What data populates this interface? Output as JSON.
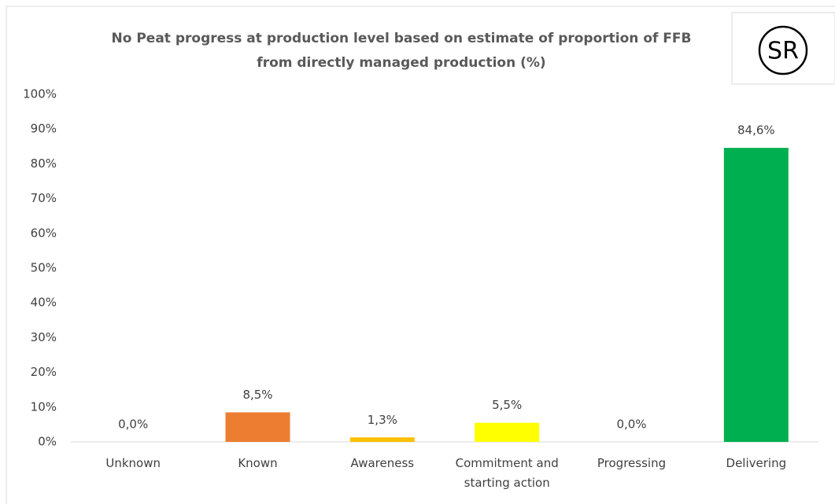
{
  "logo": "SR",
  "chart_data": {
    "type": "bar",
    "title": "No Peat progress at production level based on estimate of proportion of FFB from directly managed production (%)",
    "categories": [
      "Unknown",
      "Known",
      "Awareness",
      "Commitment and starting action",
      "Progressing",
      "Delivering"
    ],
    "values": [
      0,
      8.5,
      1.3,
      5.5,
      0,
      84.6
    ],
    "value_labels": [
      "0,0%",
      "8,5%",
      "1,3%",
      "5,5%",
      "0,0%",
      "84,6%"
    ],
    "colors": [
      "#c00000",
      "#ed7d31",
      "#ffc000",
      "#ffff00",
      "#92d050",
      "#00b050"
    ],
    "ylim": [
      0,
      100
    ],
    "yticks": [
      {
        "value": 0,
        "label": "0%"
      },
      {
        "value": 10,
        "label": "10%"
      },
      {
        "value": 20,
        "label": "20%"
      },
      {
        "value": 30,
        "label": "30%"
      },
      {
        "value": 40,
        "label": "40%"
      },
      {
        "value": 50,
        "label": "50%"
      },
      {
        "value": 60,
        "label": "60%"
      },
      {
        "value": 70,
        "label": "70%"
      },
      {
        "value": 80,
        "label": "80%"
      },
      {
        "value": 90,
        "label": "90%"
      },
      {
        "value": 100,
        "label": "100%"
      }
    ],
    "grid": false
  }
}
